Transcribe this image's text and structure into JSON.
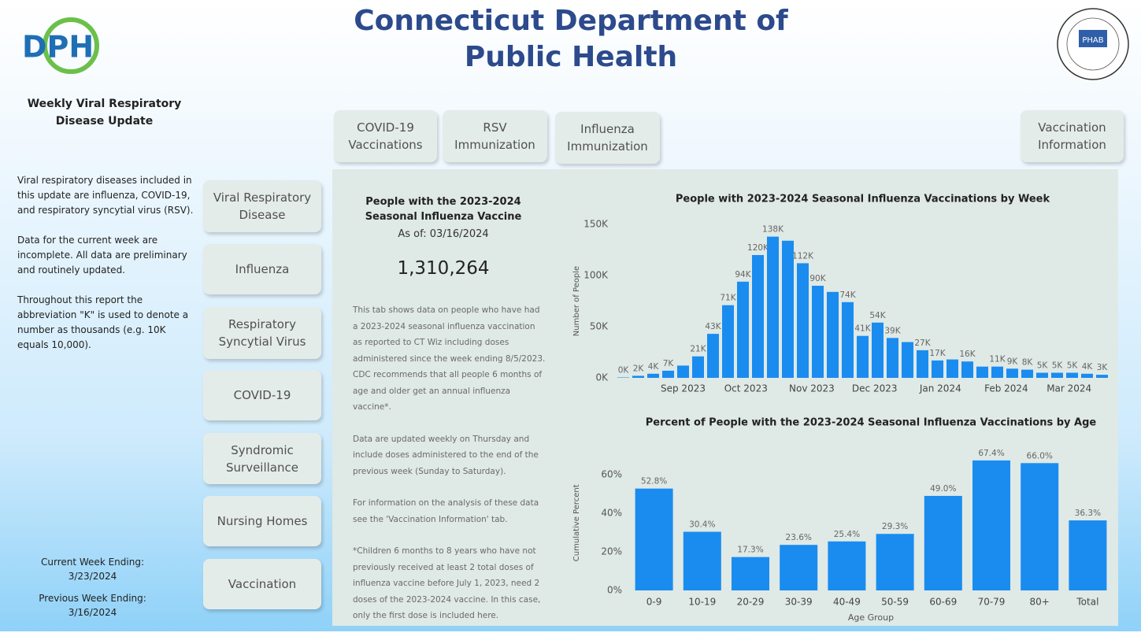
{
  "header": {
    "logo": "DPH",
    "title": "Connecticut Department of Public Health",
    "badge": "PHAB"
  },
  "sidebar": {
    "heading": "Weekly Viral Respiratory Disease Update",
    "paragraphs": [
      "Viral respiratory diseases included in this update are influenza, COVID-19, and respiratory syncytial virus (RSV).",
      "Data for the current week are incomplete.  All data are preliminary and routinely updated.",
      "Throughout this report the abbreviation \"K\" is used to denote a number as thousands (e.g. 10K equals 10,000)."
    ],
    "current_week_label": "Current Week Ending:",
    "current_week": "3/23/2024",
    "previous_week_label": "Previous Week Ending:",
    "previous_week": "3/16/2024"
  },
  "nav": [
    "Viral Respiratory Disease",
    "Influenza",
    "Respiratory Syncytial Virus",
    "COVID-19",
    "Syndromic Surveillance",
    "Nursing Homes",
    "Vaccination"
  ],
  "tabs": [
    "COVID-19 Vaccinations",
    "RSV Immunization",
    "Influenza Immunization",
    "Vaccination Information"
  ],
  "summary": {
    "title": "People with the 2023-2024 Seasonal Influenza Vaccine",
    "as_of": "As of: 03/16/2024",
    "total": "1,310,264",
    "paragraphs": [
      "This tab shows data on people who have had a 2023-2024 seasonal influenza vaccination as reported to CT Wiz including doses administered since the week ending 8/5/2023. CDC recommends that all people 6 months of age and older get an annual influenza vaccine*.",
      "Data are updated weekly on Thursday and include doses administered to the end of the previous week (Sunday to Saturday).",
      "For information on the analysis of these data see the 'Vaccination Information' tab.",
      "*Children 6 months to 8 years who have not previously received at least 2 total doses of influenza vaccine before July 1, 2023, need 2 doses of the 2023-2024 vaccine.  In this case, only the first dose is included here."
    ]
  },
  "chart_data": [
    {
      "type": "bar",
      "title": "People with 2023-2024 Seasonal Influenza Vaccinations by Week",
      "ylabel": "Number of People",
      "color": "#1a8cf0",
      "categories": [
        null,
        null,
        null,
        null,
        null,
        null,
        null,
        null,
        null,
        null,
        null,
        null,
        null,
        null,
        null,
        null,
        null,
        null,
        null,
        null,
        null,
        null,
        null,
        null,
        null,
        null,
        null,
        null,
        null,
        null,
        null,
        null,
        null
      ],
      "values": [
        400,
        2000,
        4000,
        7000,
        12000,
        21000,
        43000,
        71000,
        94000,
        120000,
        138000,
        134000,
        112000,
        90000,
        84000,
        74000,
        41000,
        54000,
        39000,
        35000,
        27000,
        17000,
        18000,
        16000,
        11000,
        11000,
        9000,
        8000,
        5000,
        5000,
        5000,
        4000,
        3000
      ],
      "value_labels": [
        "0K",
        "2K",
        "4K",
        "7K",
        null,
        "21K",
        "43K",
        "71K",
        "94K",
        "120K",
        "138K",
        null,
        "112K",
        "90K",
        null,
        "74K",
        "41K",
        "54K",
        "39K",
        null,
        "27K",
        "17K",
        null,
        "16K",
        null,
        "11K",
        "9K",
        "8K",
        "5K",
        "5K",
        "5K",
        "4K",
        "3K"
      ],
      "xticks": [
        {
          "value": 4,
          "label": "Sep 2023"
        },
        {
          "value": 8.2,
          "label": "Oct 2023"
        },
        {
          "value": 12.6,
          "label": "Nov 2023"
        },
        {
          "value": 16.8,
          "label": "Dec 2023"
        },
        {
          "value": 21.2,
          "label": "Jan 2024"
        },
        {
          "value": 25.6,
          "label": "Feb 2024"
        },
        {
          "value": 29.8,
          "label": "Mar 2024"
        }
      ],
      "ylim": [
        0,
        150000
      ],
      "yticks": [
        {
          "value": 0,
          "label": "0K"
        },
        {
          "value": 50000,
          "label": "50K"
        },
        {
          "value": 100000,
          "label": "100K"
        },
        {
          "value": 150000,
          "label": "150K"
        }
      ]
    },
    {
      "type": "bar",
      "title": "Percent of People with the 2023-2024 Seasonal Influenza Vaccinations by Age",
      "xlabel": "Age Group",
      "ylabel": "Cumulative Percent",
      "color": "#1a8cf0",
      "categories": [
        "0-9",
        "10-19",
        "20-29",
        "30-39",
        "40-49",
        "50-59",
        "60-69",
        "70-79",
        "80+",
        "Total"
      ],
      "values": [
        52.8,
        30.4,
        17.3,
        23.6,
        25.4,
        29.3,
        49.0,
        67.4,
        66.0,
        36.3
      ],
      "value_labels": [
        "52.8%",
        "30.4%",
        "17.3%",
        "23.6%",
        "25.4%",
        "29.3%",
        "49.0%",
        "67.4%",
        "66.0%",
        "36.3%"
      ],
      "ylim": [
        0,
        70
      ],
      "yticks": [
        {
          "value": 0,
          "label": "0%"
        },
        {
          "value": 20,
          "label": "20%"
        },
        {
          "value": 40,
          "label": "40%"
        },
        {
          "value": 60,
          "label": "60%"
        }
      ]
    }
  ]
}
